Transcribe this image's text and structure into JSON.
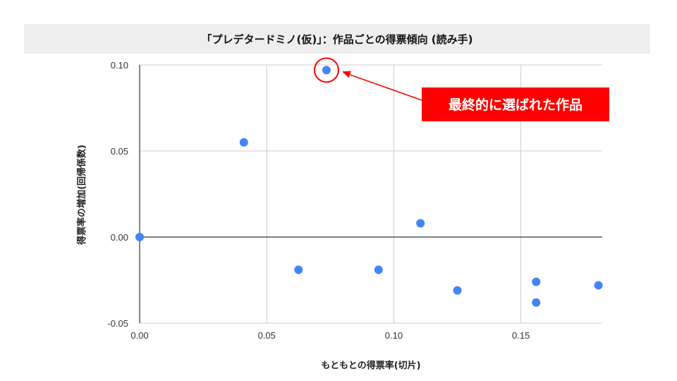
{
  "chart_data": {
    "type": "scatter",
    "title": "「プレデタードミノ(仮)」：作品ごとの得票傾向 (読み手)",
    "xlabel": "もともとの得票率(切片)",
    "ylabel": "得票率の増加(回帰係数)",
    "xlim": [
      0.0,
      0.182
    ],
    "ylim": [
      -0.05,
      0.1
    ],
    "x_ticks": [
      "0.00",
      "0.05",
      "0.10",
      "0.15"
    ],
    "y_ticks": [
      "0.10",
      "0.05",
      "0.00",
      "-0.05"
    ],
    "x_tick_values": [
      0.0,
      0.05,
      0.1,
      0.15
    ],
    "y_tick_values": [
      0.1,
      0.05,
      0.0,
      -0.05
    ],
    "grid": true,
    "legend": "none",
    "point_color": "#4285f4",
    "points": [
      {
        "x": 0.0,
        "y": 0.0
      },
      {
        "x": 0.041,
        "y": 0.055
      },
      {
        "x": 0.0625,
        "y": -0.019
      },
      {
        "x": 0.0735,
        "y": 0.097
      },
      {
        "x": 0.094,
        "y": -0.019
      },
      {
        "x": 0.1105,
        "y": 0.008
      },
      {
        "x": 0.125,
        "y": -0.031
      },
      {
        "x": 0.156,
        "y": -0.026
      },
      {
        "x": 0.156,
        "y": -0.038
      },
      {
        "x": 0.1805,
        "y": -0.028
      }
    ],
    "annotation": {
      "text": "最終的に選ばれた作品",
      "target_point_index": 3,
      "color": "#ff0000"
    }
  }
}
